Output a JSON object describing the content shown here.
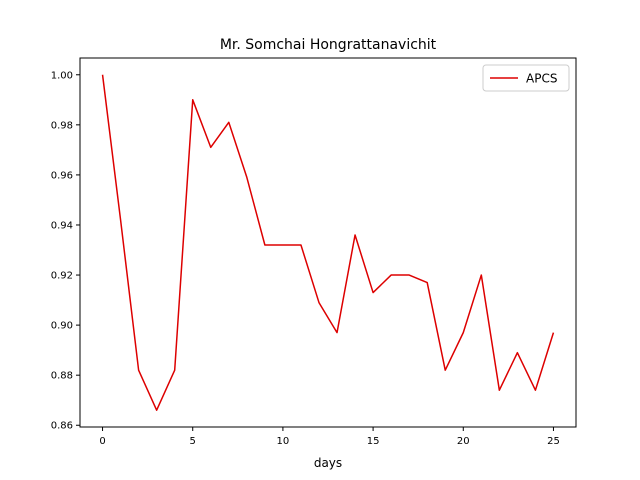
{
  "chart_data": {
    "type": "line",
    "title": "Mr. Somchai Hongrattanavichit",
    "xlabel": "days",
    "ylabel": "",
    "xlim": [
      -1.25,
      26.25
    ],
    "ylim": [
      0.8593,
      1.0067
    ],
    "xticks": [
      0,
      5,
      10,
      15,
      20,
      25
    ],
    "xtick_labels": [
      "0",
      "5",
      "10",
      "15",
      "20",
      "25"
    ],
    "yticks": [
      0.86,
      0.88,
      0.9,
      0.92,
      0.94,
      0.96,
      0.98,
      1.0
    ],
    "ytick_labels": [
      "0.86",
      "0.88",
      "0.90",
      "0.92",
      "0.94",
      "0.96",
      "0.98",
      "1.00"
    ],
    "grid": false,
    "legend": "upper right",
    "series": [
      {
        "name": "APCS",
        "color": "#dd0000",
        "x": [
          0,
          1,
          2,
          3,
          4,
          5,
          6,
          7,
          8,
          9,
          10,
          11,
          12,
          13,
          14,
          15,
          16,
          17,
          18,
          19,
          20,
          21,
          22,
          23,
          24,
          25
        ],
        "values": [
          1.0,
          0.942,
          0.882,
          0.866,
          0.882,
          0.99,
          0.971,
          0.981,
          0.959,
          0.932,
          0.932,
          0.932,
          0.909,
          0.897,
          0.936,
          0.913,
          0.92,
          0.92,
          0.917,
          0.882,
          0.897,
          0.92,
          0.874,
          0.889,
          0.874,
          0.897
        ]
      }
    ]
  }
}
